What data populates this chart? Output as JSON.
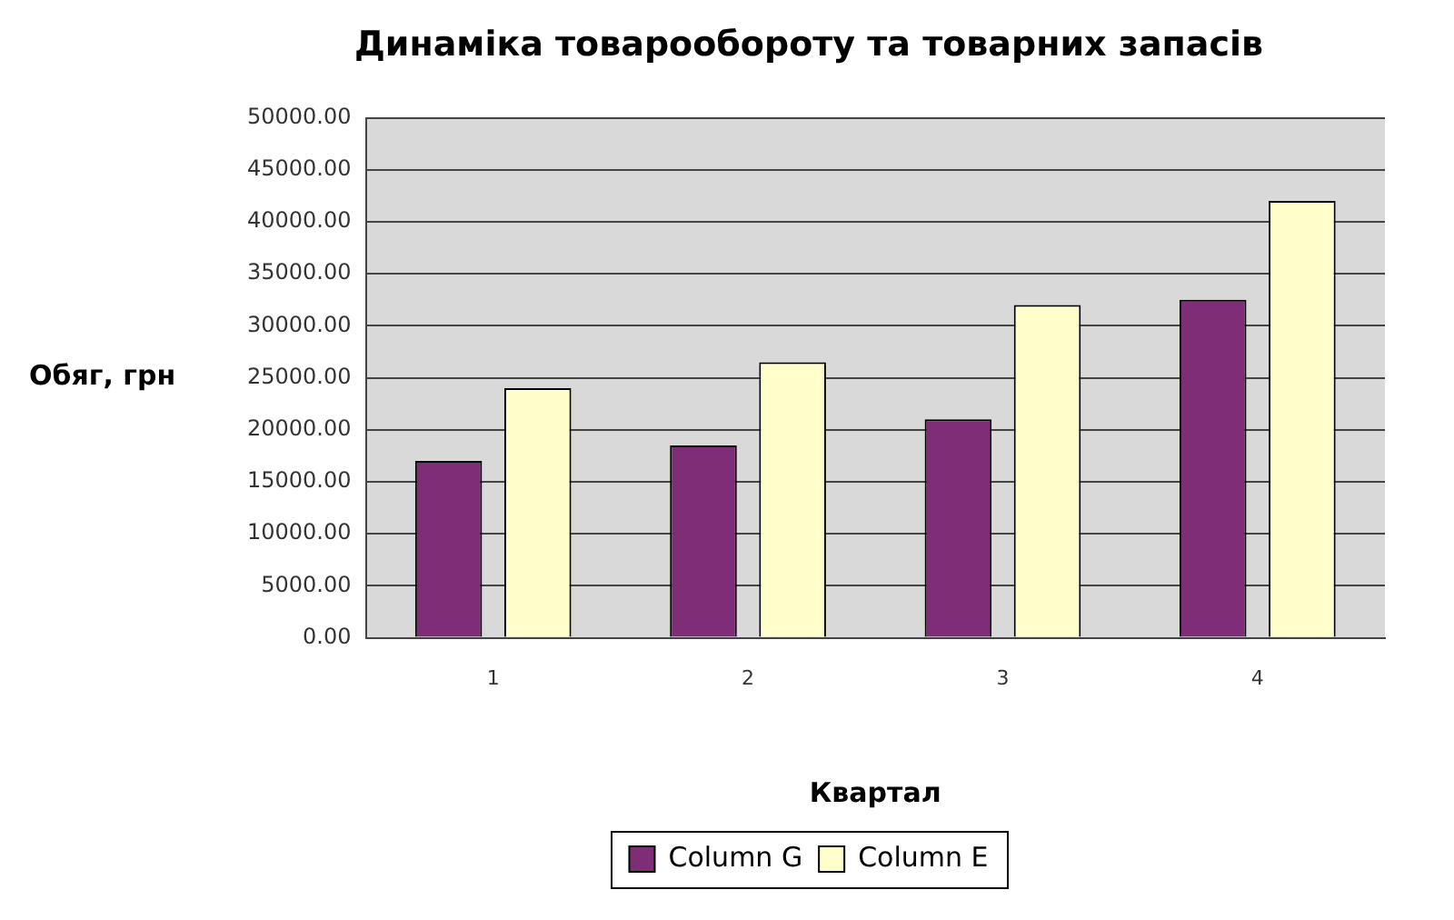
{
  "chart_data": {
    "type": "bar",
    "title": "Динаміка товарообороту та товарних запасів",
    "xlabel": "Квартал",
    "ylabel": "Обяг, грн",
    "categories": [
      "1",
      "2",
      "3",
      "4"
    ],
    "series": [
      {
        "name": "Column G",
        "color": "#7e2d76",
        "values": [
          17000,
          18500,
          21000,
          32500
        ]
      },
      {
        "name": "Column E",
        "color": "#ffffcc",
        "values": [
          24000,
          26500,
          32000,
          42000
        ]
      }
    ],
    "ylim": [
      0,
      50000
    ],
    "yticks": [
      {
        "value": 0,
        "label": "0.00"
      },
      {
        "value": 5000,
        "label": "5000.00"
      },
      {
        "value": 10000,
        "label": "10000.00"
      },
      {
        "value": 15000,
        "label": "15000.00"
      },
      {
        "value": 20000,
        "label": "20000.00"
      },
      {
        "value": 25000,
        "label": "25000.00"
      },
      {
        "value": 30000,
        "label": "30000.00"
      },
      {
        "value": 35000,
        "label": "35000.00"
      },
      {
        "value": 40000,
        "label": "40000.00"
      },
      {
        "value": 45000,
        "label": "45000.00"
      },
      {
        "value": 50000,
        "label": "50000.00"
      }
    ],
    "grid": "y",
    "legend": "bottom"
  }
}
